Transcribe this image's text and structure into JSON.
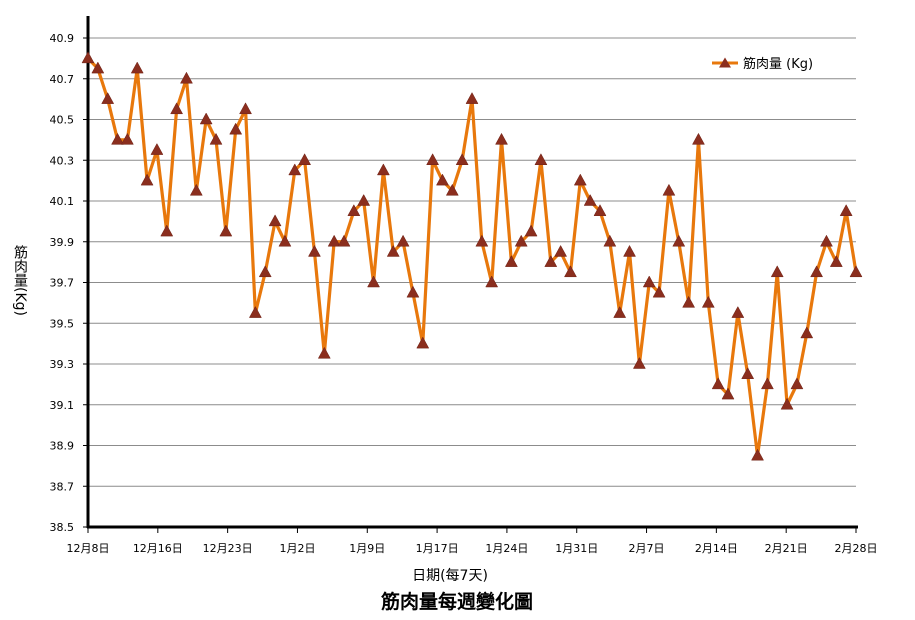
{
  "chart_data": {
    "type": "line",
    "title": "筋肉量每週變化圖",
    "xlabel": "日期(每7天)",
    "ylabel": "筋肉量(Kg)",
    "ylim": [
      38.5,
      40.9
    ],
    "yticks": [
      "38.5",
      "38.7",
      "38.9",
      "39.1",
      "39.3",
      "39.5",
      "39.7",
      "39.9",
      "40.1",
      "40.3",
      "40.5",
      "40.7",
      "40.9"
    ],
    "xtick_labels": [
      "12月8日",
      "12月16日",
      "12月23日",
      "1月2日",
      "1月9日",
      "1月17日",
      "1月24日",
      "1月31日",
      "2月7日",
      "2月14日",
      "2月21日",
      "2月28日"
    ],
    "grid": true,
    "legend": "top-right",
    "series": [
      {
        "name": "筋肉量 (Kg)",
        "color": "#E8780C",
        "marker_color": "#8B2E1E",
        "values": [
          40.8,
          40.75,
          40.6,
          40.4,
          40.4,
          40.75,
          40.2,
          40.35,
          39.95,
          40.55,
          40.7,
          40.15,
          40.5,
          40.4,
          39.95,
          40.45,
          40.55,
          39.55,
          39.75,
          40.0,
          39.9,
          40.25,
          40.3,
          39.85,
          39.35,
          39.9,
          39.9,
          40.05,
          40.1,
          39.7,
          40.25,
          39.85,
          39.9,
          39.65,
          39.4,
          40.3,
          40.2,
          40.15,
          40.3,
          40.6,
          39.9,
          39.7,
          40.4,
          39.8,
          39.9,
          39.95,
          40.3,
          39.8,
          39.85,
          39.75,
          40.2,
          40.1,
          40.05,
          39.9,
          39.55,
          39.85,
          39.3,
          39.7,
          39.65,
          40.15,
          39.9,
          39.6,
          40.4,
          39.6,
          39.2,
          39.15,
          39.55,
          39.25,
          38.85,
          39.2,
          39.75,
          39.1,
          39.2,
          39.45,
          39.75,
          39.9,
          39.8,
          40.05,
          39.75
        ]
      }
    ]
  }
}
